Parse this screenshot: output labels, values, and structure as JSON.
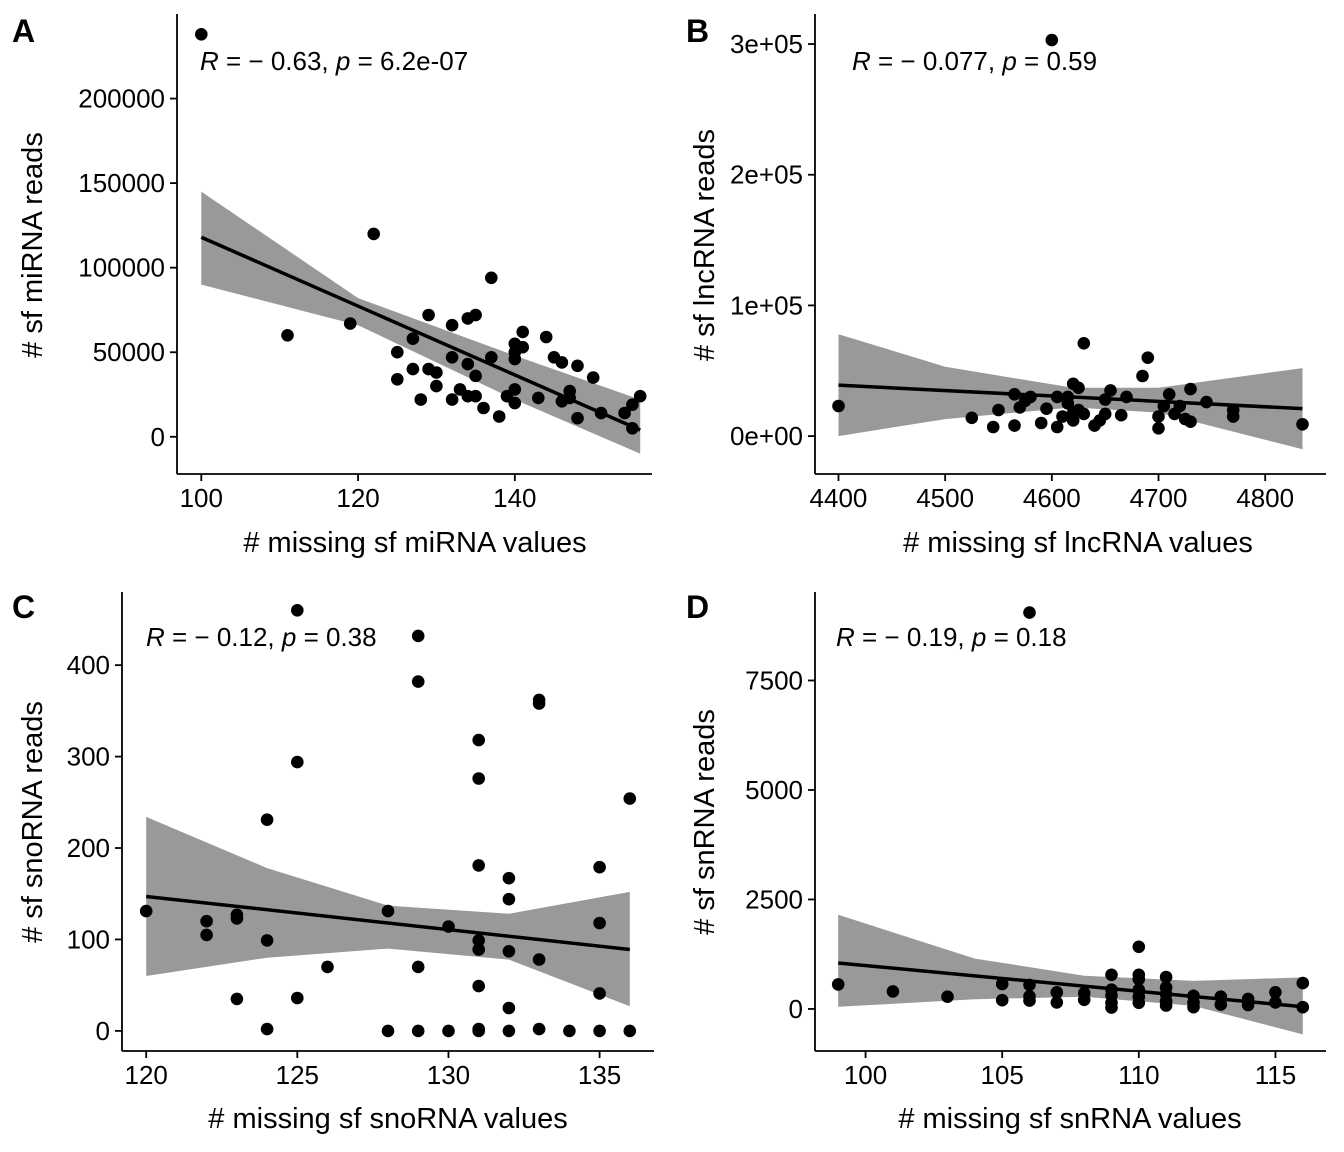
{
  "chart_data": [
    {
      "type": "scatter",
      "panel_label": "A",
      "xlabel": "# missing sf miRNA values",
      "ylabel": "# sf miRNA reads",
      "xlim": [
        96.9,
        157.5
      ],
      "ylim": [
        -22000,
        250000
      ],
      "xticks": [
        100,
        120,
        140
      ],
      "xtick_labels": [
        "100",
        "120",
        "140"
      ],
      "yticks": [
        0,
        50000,
        100000,
        150000,
        200000
      ],
      "ytick_labels": [
        "0",
        "50000",
        "100000",
        "150000",
        "200000"
      ],
      "annotation": {
        "R": "R",
        "p": "p",
        "text1": " = − 0.63, ",
        "text2": " = 6.2e-07"
      },
      "fit": {
        "x": [
          100,
          156
        ],
        "y": [
          118000,
          4000
        ]
      },
      "band": {
        "x": [
          100,
          120,
          140,
          156
        ],
        "upper": [
          145000,
          82000,
          48000,
          22000
        ],
        "lower": [
          90000,
          66000,
          22000,
          -10000
        ]
      },
      "points": [
        [
          100,
          238000
        ],
        [
          111,
          60000
        ],
        [
          119,
          67000
        ],
        [
          122,
          120000
        ],
        [
          125,
          50000
        ],
        [
          125,
          34000
        ],
        [
          127,
          58000
        ],
        [
          127,
          40000
        ],
        [
          128,
          22000
        ],
        [
          129,
          72000
        ],
        [
          129,
          40000
        ],
        [
          130,
          30000
        ],
        [
          130,
          38000
        ],
        [
          132,
          66000
        ],
        [
          132,
          47000
        ],
        [
          132,
          22000
        ],
        [
          133,
          28000
        ],
        [
          134,
          70000
        ],
        [
          134,
          43000
        ],
        [
          134,
          24000
        ],
        [
          135,
          72000
        ],
        [
          135,
          36000
        ],
        [
          135,
          24000
        ],
        [
          136,
          17000
        ],
        [
          137,
          94000
        ],
        [
          137,
          47000
        ],
        [
          138,
          12000
        ],
        [
          139,
          24000
        ],
        [
          140,
          20000
        ],
        [
          140,
          28000
        ],
        [
          140,
          46000
        ],
        [
          140,
          50000
        ],
        [
          140,
          55000
        ],
        [
          141,
          62000
        ],
        [
          141,
          53000
        ],
        [
          143,
          23000
        ],
        [
          144,
          59000
        ],
        [
          145,
          47000
        ],
        [
          146,
          44000
        ],
        [
          146,
          21000
        ],
        [
          147,
          23000
        ],
        [
          147,
          27000
        ],
        [
          148,
          11000
        ],
        [
          148,
          42000
        ],
        [
          150,
          35000
        ],
        [
          151,
          14000
        ],
        [
          154,
          14000
        ],
        [
          155,
          19000
        ],
        [
          155,
          5000
        ],
        [
          156,
          24000
        ]
      ]
    },
    {
      "type": "scatter",
      "panel_label": "B",
      "xlabel": "# missing sf lncRNA values",
      "ylabel": "# sf lncRNA reads",
      "xlim": [
        4378,
        4857
      ],
      "ylim": [
        -29000,
        323000
      ],
      "xticks": [
        4400,
        4500,
        4600,
        4700,
        4800
      ],
      "xtick_labels": [
        "4400",
        "4500",
        "4600",
        "4700",
        "4800"
      ],
      "yticks": [
        0,
        100000,
        200000,
        300000
      ],
      "ytick_labels": [
        "0e+00",
        "1e+05",
        "2e+05",
        "3e+05"
      ],
      "annotation": {
        "R": "R",
        "p": "p",
        "text1": " = − 0.077, ",
        "text2": " = 0.59"
      },
      "fit": {
        "x": [
          4400,
          4835
        ],
        "y": [
          39000,
          21000
        ]
      },
      "band": {
        "x": [
          4400,
          4500,
          4620,
          4700,
          4835
        ],
        "upper": [
          78000,
          53000,
          37000,
          37000,
          52000
        ],
        "lower": [
          0,
          13000,
          22000,
          18000,
          -10000
        ]
      },
      "points": [
        [
          4400,
          23000
        ],
        [
          4525,
          14000
        ],
        [
          4545,
          7000
        ],
        [
          4550,
          20000
        ],
        [
          4565,
          8000
        ],
        [
          4565,
          32000
        ],
        [
          4570,
          22000
        ],
        [
          4575,
          27000
        ],
        [
          4580,
          30000
        ],
        [
          4590,
          10000
        ],
        [
          4595,
          21000
        ],
        [
          4605,
          7000
        ],
        [
          4605,
          30000
        ],
        [
          4610,
          15000
        ],
        [
          4615,
          25000
        ],
        [
          4615,
          30000
        ],
        [
          4620,
          40000
        ],
        [
          4620,
          18000
        ],
        [
          4620,
          12000
        ],
        [
          4625,
          37000
        ],
        [
          4625,
          20000
        ],
        [
          4630,
          71000
        ],
        [
          4630,
          17000
        ],
        [
          4640,
          8000
        ],
        [
          4645,
          12000
        ],
        [
          4650,
          28000
        ],
        [
          4650,
          17000
        ],
        [
          4655,
          35000
        ],
        [
          4665,
          16000
        ],
        [
          4670,
          30000
        ],
        [
          4685,
          46000
        ],
        [
          4690,
          60000
        ],
        [
          4700,
          6000
        ],
        [
          4700,
          15000
        ],
        [
          4705,
          23000
        ],
        [
          4710,
          32000
        ],
        [
          4715,
          17000
        ],
        [
          4720,
          23000
        ],
        [
          4725,
          13000
        ],
        [
          4730,
          11000
        ],
        [
          4730,
          36000
        ],
        [
          4745,
          26000
        ],
        [
          4770,
          20000
        ],
        [
          4770,
          15000
        ],
        [
          4835,
          9000
        ],
        [
          4600,
          303000
        ]
      ]
    },
    {
      "type": "scatter",
      "panel_label": "C",
      "xlabel": "# missing sf snoRNA values",
      "ylabel": "# sf snoRNA reads",
      "xlim": [
        119.2,
        136.8
      ],
      "ylim": [
        -22,
        480
      ],
      "xticks": [
        120,
        125,
        130,
        135
      ],
      "xtick_labels": [
        "120",
        "125",
        "130",
        "135"
      ],
      "yticks": [
        0,
        100,
        200,
        300,
        400
      ],
      "ytick_labels": [
        "0",
        "100",
        "200",
        "300",
        "400"
      ],
      "annotation": {
        "R": "R",
        "p": "p",
        "text1": " = − 0.12, ",
        "text2": " = 0.38"
      },
      "fit": {
        "x": [
          120,
          136
        ],
        "y": [
          147,
          89
        ]
      },
      "band": {
        "x": [
          120,
          124,
          128,
          132,
          136
        ],
        "upper": [
          234,
          178,
          137,
          128,
          152
        ],
        "lower": [
          60,
          80,
          90,
          78,
          27
        ]
      },
      "points": [
        [
          120,
          131
        ],
        [
          122,
          120
        ],
        [
          122,
          105
        ],
        [
          123,
          127
        ],
        [
          123,
          123
        ],
        [
          123,
          35
        ],
        [
          124,
          231
        ],
        [
          124,
          99
        ],
        [
          124,
          2
        ],
        [
          125,
          460
        ],
        [
          125,
          294
        ],
        [
          125,
          36
        ],
        [
          126,
          70
        ],
        [
          128,
          131
        ],
        [
          128,
          0
        ],
        [
          129,
          432
        ],
        [
          129,
          382
        ],
        [
          129,
          70
        ],
        [
          129,
          0
        ],
        [
          130,
          114
        ],
        [
          130,
          0
        ],
        [
          131,
          318
        ],
        [
          131,
          276
        ],
        [
          131,
          181
        ],
        [
          131,
          99
        ],
        [
          131,
          89
        ],
        [
          131,
          49
        ],
        [
          131,
          2
        ],
        [
          132,
          167
        ],
        [
          132,
          144
        ],
        [
          132,
          87
        ],
        [
          132,
          25
        ],
        [
          132,
          0
        ],
        [
          133,
          362
        ],
        [
          133,
          358
        ],
        [
          133,
          78
        ],
        [
          133,
          2
        ],
        [
          134,
          0
        ],
        [
          135,
          179
        ],
        [
          135,
          118
        ],
        [
          135,
          41
        ],
        [
          135,
          0
        ],
        [
          136,
          254
        ],
        [
          136,
          0
        ],
        [
          131,
          0
        ]
      ]
    },
    {
      "type": "scatter",
      "panel_label": "D",
      "xlabel": "# missing sf snRNA values",
      "ylabel": "# sf snRNA reads",
      "xlim": [
        98.15,
        116.85
      ],
      "ylim": [
        -960,
        9520
      ],
      "xticks": [
        100,
        105,
        110,
        115
      ],
      "xtick_labels": [
        "100",
        "105",
        "110",
        "115"
      ],
      "yticks": [
        0,
        2500,
        5000,
        7500
      ],
      "ytick_labels": [
        "0",
        "2500",
        "5000",
        "7500"
      ],
      "annotation": {
        "R": "R",
        "p": "p",
        "text1": " = − 0.19, ",
        "text2": " = 0.18"
      },
      "fit": {
        "x": [
          99,
          116
        ],
        "y": [
          1050,
          50
        ]
      },
      "band": {
        "x": [
          99,
          104,
          108,
          112,
          116
        ],
        "upper": [
          2150,
          1150,
          760,
          640,
          720
        ],
        "lower": [
          50,
          220,
          280,
          70,
          -580
        ]
      },
      "points": [
        [
          99,
          560
        ],
        [
          101,
          400
        ],
        [
          103,
          280
        ],
        [
          105,
          570
        ],
        [
          105,
          200
        ],
        [
          106,
          9050
        ],
        [
          106,
          550
        ],
        [
          106,
          290
        ],
        [
          106,
          190
        ],
        [
          107,
          380
        ],
        [
          107,
          150
        ],
        [
          108,
          360
        ],
        [
          108,
          210
        ],
        [
          109,
          780
        ],
        [
          109,
          440
        ],
        [
          109,
          310
        ],
        [
          109,
          140
        ],
        [
          109,
          30
        ],
        [
          110,
          1420
        ],
        [
          110,
          780
        ],
        [
          110,
          680
        ],
        [
          110,
          440
        ],
        [
          110,
          280
        ],
        [
          110,
          140
        ],
        [
          111,
          490
        ],
        [
          111,
          340
        ],
        [
          111,
          180
        ],
        [
          111,
          80
        ],
        [
          111,
          730
        ],
        [
          112,
          300
        ],
        [
          112,
          150
        ],
        [
          112,
          40
        ],
        [
          113,
          280
        ],
        [
          113,
          100
        ],
        [
          114,
          230
        ],
        [
          114,
          90
        ],
        [
          115,
          380
        ],
        [
          115,
          150
        ],
        [
          116,
          590
        ],
        [
          116,
          40
        ]
      ]
    }
  ]
}
